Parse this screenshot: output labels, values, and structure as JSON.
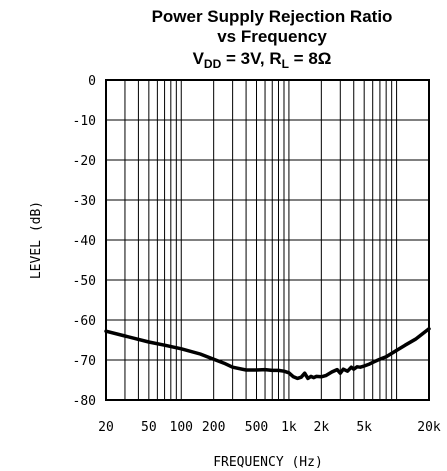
{
  "chart_data": {
    "type": "line",
    "title_line1": "Power Supply Rejection Ratio",
    "title_line2": "vs Frequency",
    "title_line3": {
      "v": "V",
      "v_sub": "DD",
      "v_rest": " = 3V, R",
      "r_sub": "L",
      "r_rest": " = 8Ω"
    },
    "xlabel": "FREQUENCY (Hz)",
    "ylabel": "LEVEL (dB)",
    "x_scale": "log",
    "xlim": [
      20,
      20000
    ],
    "ylim": [
      -80,
      0
    ],
    "grid": true,
    "x_ticks": [
      {
        "value": 20,
        "label": "20"
      },
      {
        "value": 50,
        "label": "50"
      },
      {
        "value": 100,
        "label": "100"
      },
      {
        "value": 200,
        "label": "200"
      },
      {
        "value": 500,
        "label": "500"
      },
      {
        "value": 1000,
        "label": "1k"
      },
      {
        "value": 2000,
        "label": "2k"
      },
      {
        "value": 5000,
        "label": "5k"
      },
      {
        "value": 20000,
        "label": "20k"
      }
    ],
    "y_ticks": [
      {
        "value": 0,
        "label": "0"
      },
      {
        "value": -10,
        "label": "-10"
      },
      {
        "value": -20,
        "label": "-20"
      },
      {
        "value": -30,
        "label": "-30"
      },
      {
        "value": -40,
        "label": "-40"
      },
      {
        "value": -50,
        "label": "-50"
      },
      {
        "value": -60,
        "label": "-60"
      },
      {
        "value": -70,
        "label": "-70"
      },
      {
        "value": -80,
        "label": "-80"
      }
    ],
    "series": [
      {
        "x": [
          20,
          30,
          50,
          70,
          100,
          150,
          200,
          250,
          300,
          400,
          500,
          600,
          700,
          800,
          900,
          1000,
          1100,
          1200,
          1300,
          1400,
          1500,
          1600,
          1700,
          1800,
          2000,
          2200,
          2500,
          2800,
          3000,
          3200,
          3500,
          3800,
          4000,
          4300,
          4600,
          5000,
          5500,
          6000,
          7000,
          8000,
          10000,
          12000,
          15000,
          20000
        ],
        "y": [
          -62.8,
          -64.0,
          -65.5,
          -66.3,
          -67.2,
          -68.5,
          -69.8,
          -70.8,
          -71.8,
          -72.5,
          -72.5,
          -72.4,
          -72.6,
          -72.6,
          -72.8,
          -73.2,
          -74.2,
          -74.6,
          -74.3,
          -73.3,
          -74.6,
          -74.1,
          -74.4,
          -74.1,
          -74.2,
          -73.9,
          -73.0,
          -72.4,
          -73.3,
          -72.3,
          -72.8,
          -71.8,
          -72.3,
          -71.7,
          -71.8,
          -71.5,
          -71.1,
          -70.6,
          -69.8,
          -69.2,
          -67.6,
          -66.3,
          -64.8,
          -62.2
        ]
      }
    ]
  }
}
